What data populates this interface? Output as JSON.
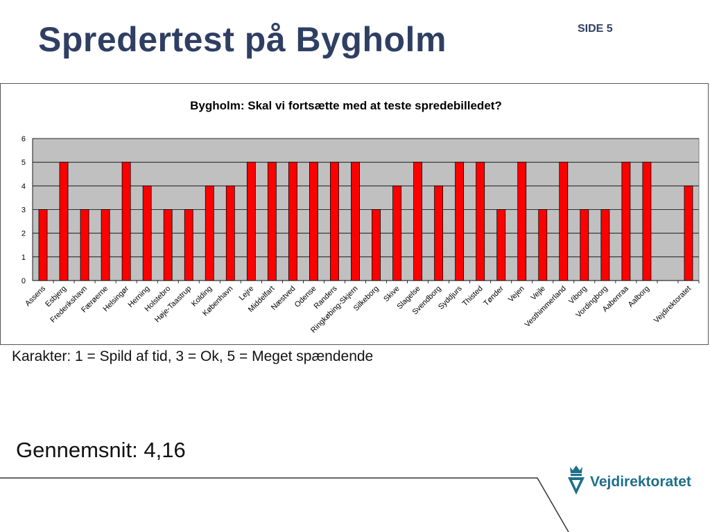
{
  "slide": {
    "title": "Spredertest på Bygholm",
    "page_label": "SIDE 5",
    "caption": "Karakter: 1 = Spild af tid, 3 = Ok, 5 = Meget spændende",
    "average": "Gennemsnit: 4,16",
    "logo_text": "Vejdirektoratet"
  },
  "colors": {
    "bar": "#ff0000",
    "plot_bg": "#c0c0c0",
    "title": "#2f3f63",
    "logo": "#1d6f8a"
  },
  "icons": {
    "logo": "crown-shield-icon"
  },
  "chart_data": {
    "type": "bar",
    "title": "Bygholm: Skal vi fortsætte med at teste spredebilledet?",
    "xlabel": "",
    "ylabel": "",
    "ylim": [
      0,
      6
    ],
    "yticks": [
      "0",
      "1",
      "2",
      "3",
      "4",
      "5",
      "6"
    ],
    "grid": true,
    "legend": "none",
    "categories": [
      "Assens",
      "Esbjerg",
      "Frederikshavn",
      "Færøerne",
      "Helsingør",
      "Herning",
      "Holstebro",
      "Høje-Taastrup",
      "Kolding",
      "København",
      "Lejre",
      "Middelfart",
      "Næstved",
      "Odense",
      "Randers",
      "Ringkøbing-Skjern",
      "Silkeborg",
      "Skive",
      "Slagelse",
      "Svendborg",
      "Syddjurs",
      "Thisted",
      "Tønder",
      "Vejen",
      "Vejle",
      "Vesthimmerland",
      "Viborg",
      "Vordingborg",
      "Aabenraa",
      "Aalborg",
      "",
      "Vejdirektoratet"
    ],
    "values": [
      3,
      5,
      3,
      3,
      5,
      4,
      3,
      3,
      4,
      4,
      5,
      5,
      5,
      5,
      5,
      5,
      3,
      4,
      5,
      4,
      5,
      5,
      3,
      5,
      3,
      5,
      3,
      3,
      5,
      5,
      null,
      4
    ]
  }
}
